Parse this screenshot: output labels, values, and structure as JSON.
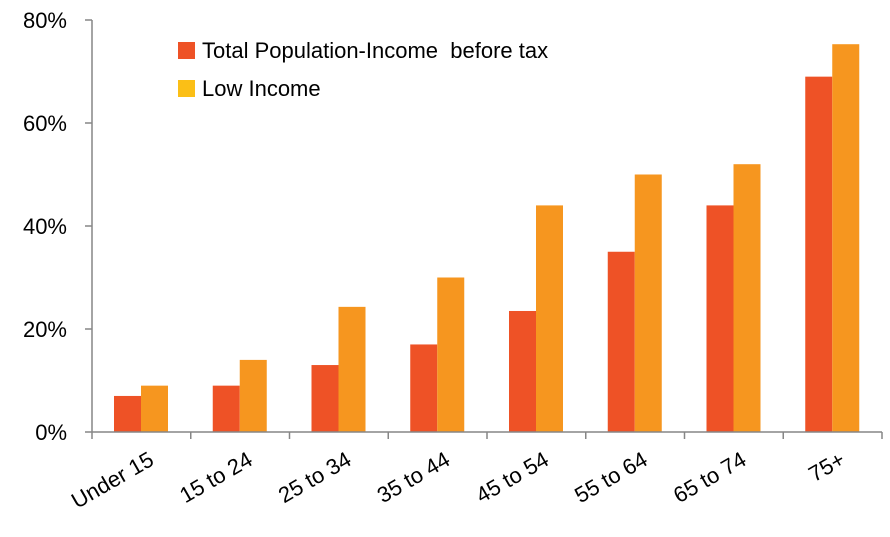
{
  "chart_data": {
    "type": "bar",
    "categories": [
      "Under 15",
      "15 to 24",
      "25 to 34",
      "35 to 44",
      "45 to 54",
      "55 to 64",
      "65 to 74",
      "75+"
    ],
    "series": [
      {
        "name": "Total Population-Income  before tax",
        "color": "#ee5226",
        "values": [
          7,
          9,
          13,
          17,
          23.5,
          35,
          44,
          69
        ]
      },
      {
        "name": "Low Income",
        "color": "#f6961f",
        "values": [
          9,
          14,
          24.3,
          30,
          44,
          50,
          52,
          75.3
        ]
      }
    ],
    "ylim": [
      0,
      80
    ],
    "yticks": [
      0,
      20,
      40,
      60,
      80
    ],
    "ytick_labels": [
      "0%",
      "20%",
      "40%",
      "60%",
      "80%"
    ],
    "legend": {
      "placement": "top-left",
      "swatch_colors": [
        "#ee5226",
        "#fbbf16"
      ]
    },
    "grid": false,
    "title": "",
    "xlabel": "",
    "ylabel": ""
  }
}
